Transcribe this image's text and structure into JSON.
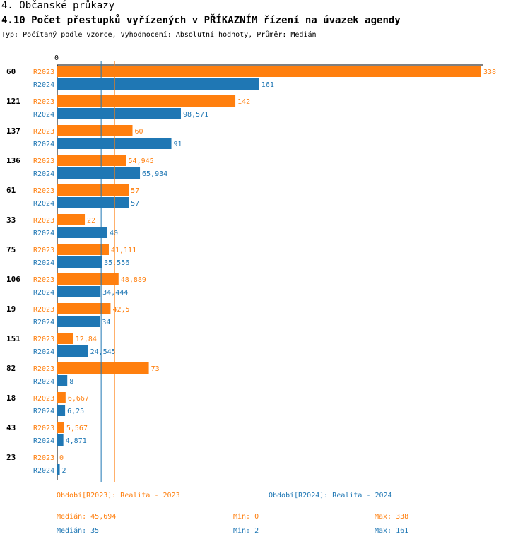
{
  "header": {
    "section": "4. Občanské průkazy",
    "title": "4.10 Počet přestupků vyřízených v PŘÍKAZNÍM řízení na úvazek agendy",
    "subtitle": "Typ: Počítaný podle vzorce, Vyhodnocení: Absolutní hodnoty, Průměr: Medián"
  },
  "colors": {
    "r2023": "#ff7f0e",
    "r2024": "#1f77b4"
  },
  "chart_data": {
    "type": "bar",
    "orientation": "horizontal",
    "axis_zero_label": "0",
    "xlim": [
      0,
      338
    ],
    "categories": [
      "60",
      "121",
      "137",
      "136",
      "61",
      "33",
      "75",
      "106",
      "19",
      "151",
      "82",
      "18",
      "43",
      "23"
    ],
    "series": [
      {
        "name": "R2023",
        "values": [
          338,
          142,
          60,
          54.945,
          57,
          22,
          41.111,
          48.889,
          42.5,
          12.84,
          73,
          6.667,
          5.567,
          0
        ],
        "labels": [
          "338",
          "142",
          "60",
          "54,945",
          "57",
          "22",
          "41,111",
          "48,889",
          "42,5",
          "12,84",
          "73",
          "6,667",
          "5,567",
          "0"
        ]
      },
      {
        "name": "R2024",
        "values": [
          161,
          98.571,
          91,
          65.934,
          57,
          40,
          35.556,
          34.444,
          34,
          24.545,
          8,
          6.25,
          4.871,
          2
        ],
        "labels": [
          "161",
          "98,571",
          "91",
          "65,934",
          "57",
          "40",
          "35,556",
          "34,444",
          "34",
          "24,545",
          "8",
          "6,25",
          "4,871",
          "2"
        ]
      }
    ],
    "median_lines": {
      "R2023": 45.694,
      "R2024": 35
    }
  },
  "legend": {
    "r2023": "Období[R2023]: Realita - 2023",
    "r2024": "Období[R2024]: Realita - 2024"
  },
  "stats": {
    "r2023": {
      "median": "Medián: 45,694",
      "min": "Min: 0",
      "max": "Max: 338"
    },
    "r2024": {
      "median": "Medián: 35",
      "min": "Min: 2",
      "max": "Max: 161"
    }
  }
}
